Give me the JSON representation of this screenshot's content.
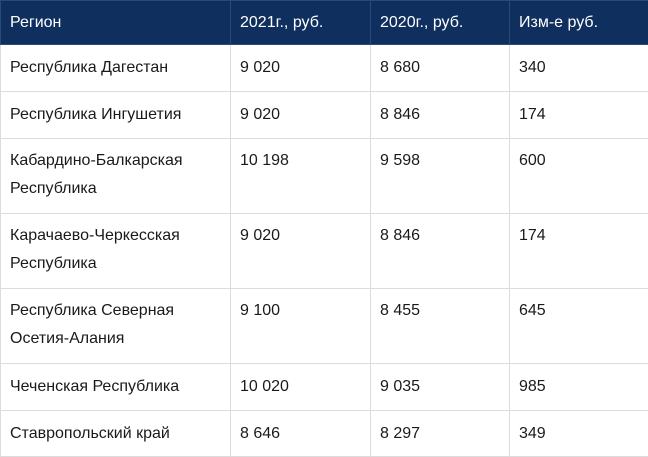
{
  "table": {
    "headers": [
      "Регион",
      "2021г., руб.",
      "2020г., руб.",
      "Изм-е руб."
    ],
    "rows": [
      [
        "Республика Дагестан",
        "9 020",
        "8 680",
        "340"
      ],
      [
        "Республика Ингушетия",
        "9 020",
        "8 846",
        "174"
      ],
      [
        "Кабардино-Балкарская Республика",
        "10 198",
        "9 598",
        "600"
      ],
      [
        "Карачаево-Черкесская Республика",
        "9 020",
        "8 846",
        "174"
      ],
      [
        "Республика Северная Осетия-Алания",
        "9 100",
        "8 455",
        "645"
      ],
      [
        "Чеченская Республика",
        "10 020",
        "9 035",
        "985"
      ],
      [
        "Ставропольский край",
        "8 646",
        "8 297",
        "349"
      ]
    ]
  }
}
